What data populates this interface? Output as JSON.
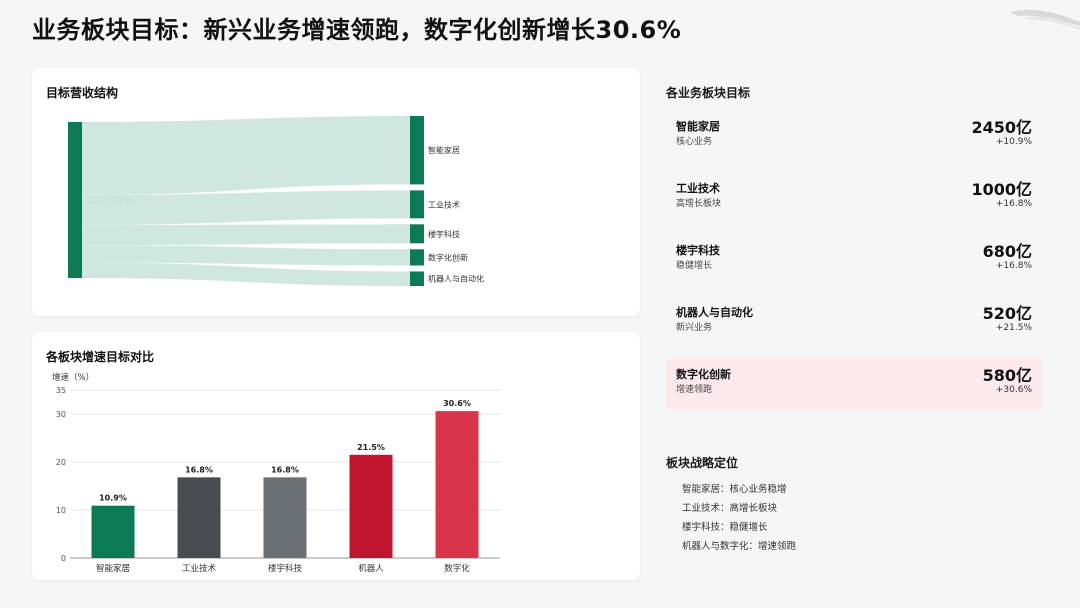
{
  "page": {
    "title": "业务板块目标：新兴业务增速领跑，数字化创新增长30.6%"
  },
  "colors": {
    "green": "#0b7a55",
    "flow": "#cde6dd",
    "dark_gray": "#494d51",
    "gray": "#6b7074",
    "red": "#c0152f",
    "red_light": "#d8344a",
    "highlight_bg": "#fbe9ec"
  },
  "sankey": {
    "title": "目标营收结构",
    "source": {
      "label": "2026年目标"
    },
    "targets": [
      {
        "label": "智能家居",
        "value": 2450
      },
      {
        "label": "工业技术",
        "value": 1000
      },
      {
        "label": "楼宇科技",
        "value": 680
      },
      {
        "label": "数字化创新",
        "value": 580
      },
      {
        "label": "机器人与自动化",
        "value": 520
      }
    ]
  },
  "chart_data": {
    "type": "bar",
    "title": "各板块增速目标对比",
    "ylabel": "增速（%）",
    "xlabel": "",
    "categories": [
      "智能家居",
      "工业技术",
      "楼宇科技",
      "机器人",
      "数字化"
    ],
    "values": [
      10.9,
      16.8,
      16.8,
      21.5,
      30.6
    ],
    "data_labels": [
      "10.9%",
      "16.8%",
      "16.8%",
      "21.5%",
      "30.6%"
    ],
    "bar_colors": [
      "#0b7a55",
      "#494d51",
      "#6b7074",
      "#c0152f",
      "#d8344a"
    ],
    "ylim": [
      0,
      35
    ],
    "yticks": [
      0,
      10,
      20,
      30,
      35
    ],
    "grid": true
  },
  "segments": {
    "title": "各业务板块目标",
    "items": [
      {
        "name": "智能家居",
        "sub": "核心业务",
        "value": "2450亿",
        "growth": "+10.9%"
      },
      {
        "name": "工业技术",
        "sub": "高增长板块",
        "value": "1000亿",
        "growth": "+16.8%"
      },
      {
        "name": "楼宇科技",
        "sub": "稳健增长",
        "value": "680亿",
        "growth": "+16.8%"
      },
      {
        "name": "机器人与自动化",
        "sub": "新兴业务",
        "value": "520亿",
        "growth": "+21.5%"
      },
      {
        "name": "数字化创新",
        "sub": "增速领跑",
        "value": "580亿",
        "growth": "+30.6%"
      }
    ]
  },
  "positioning": {
    "title": "板块战略定位",
    "items": [
      "智能家居：核心业务稳增",
      "工业技术：高增长板块",
      "楼宇科技：稳健增长",
      "机器人与数字化：增速领跑"
    ]
  }
}
